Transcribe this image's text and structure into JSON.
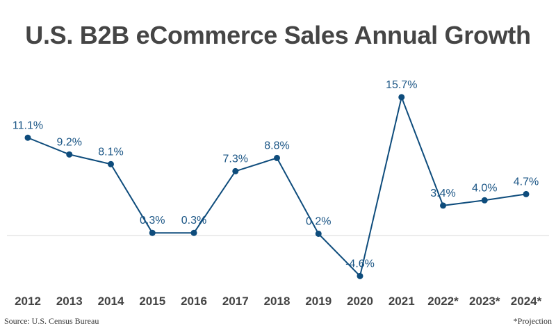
{
  "chart_data": {
    "type": "line",
    "title": "U.S. B2B eCommerce Sales Annual Growth",
    "categories": [
      "2012",
      "2013",
      "2014",
      "2015",
      "2016",
      "2017",
      "2018",
      "2019",
      "2020",
      "2021",
      "2022*",
      "2023*",
      "2024*"
    ],
    "values": [
      11.1,
      9.2,
      8.1,
      0.3,
      0.3,
      7.3,
      8.8,
      0.2,
      -4.6,
      15.7,
      3.4,
      4.0,
      4.7
    ],
    "data_labels": [
      "11.1%",
      "9.2%",
      "8.1%",
      "0.3%",
      "0.3%",
      "7.3%",
      "8.8%",
      "0.2%",
      "-4.6%",
      "15.7%",
      "3.4%",
      "4.0%",
      "4.7%"
    ],
    "xlabel": "",
    "ylabel": "",
    "grid": false,
    "zero_line": true,
    "colors": {
      "line": "#0e4c7c",
      "label": "#1a5585",
      "title": "#454545",
      "axis": "#444444"
    }
  },
  "footer": {
    "source": "Source: U.S. Census Bureau",
    "note": "*Projection"
  }
}
